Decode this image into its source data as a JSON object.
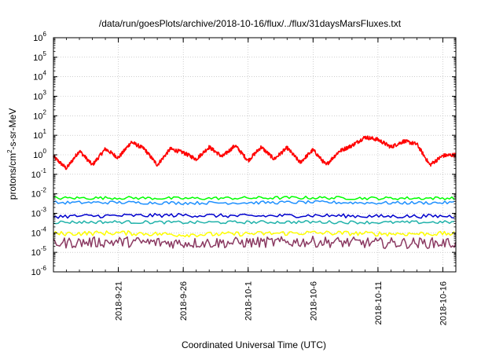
{
  "chart_data": {
    "type": "line",
    "title": "/data/run/goesPlots/archive/2018-10-16/flux/../flux/31daysMarsFluxes.txt",
    "xlabel": "Coordinated Universal Time (UTC)",
    "ylabel": "protons/cm²-s-sr-MeV",
    "ylabel_parts": {
      "pre": "protons/cm",
      "sup": "2",
      "post": "-s-sr-MeV"
    },
    "y_scale": "log",
    "ylim": [
      1e-06,
      1000000.0
    ],
    "xlim": [
      "2018-09-16",
      "2018-10-17"
    ],
    "y_ticks": [
      {
        "value": 1e-06,
        "base": "10",
        "exp": "-6"
      },
      {
        "value": 1e-05,
        "base": "10",
        "exp": "-5"
      },
      {
        "value": 0.0001,
        "base": "10",
        "exp": "-4"
      },
      {
        "value": 0.001,
        "base": "10",
        "exp": "-3"
      },
      {
        "value": 0.01,
        "base": "10",
        "exp": "-2"
      },
      {
        "value": 0.1,
        "base": "10",
        "exp": "-1"
      },
      {
        "value": 1,
        "base": "10",
        "exp": "0"
      },
      {
        "value": 10,
        "base": "10",
        "exp": "1"
      },
      {
        "value": 100,
        "base": "10",
        "exp": "2"
      },
      {
        "value": 1000.0,
        "base": "10",
        "exp": "3"
      },
      {
        "value": 10000.0,
        "base": "10",
        "exp": "4"
      },
      {
        "value": 100000.0,
        "base": "10",
        "exp": "5"
      },
      {
        "value": 1000000.0,
        "base": "10",
        "exp": "6"
      }
    ],
    "x_ticks": [
      "2018-9-21",
      "2018-9-26",
      "2018-10-1",
      "2018-10-6",
      "2018-10-11",
      "2018-10-16"
    ],
    "x_tick_dates": [
      "2018-09-21",
      "2018-09-26",
      "2018-10-01",
      "2018-10-06",
      "2018-10-11",
      "2018-10-16"
    ],
    "grid": true,
    "legend": "none",
    "series": [
      {
        "color": "#ff0000",
        "x": [
          "2018-09-16",
          "2018-09-17",
          "2018-09-18",
          "2018-09-19",
          "2018-09-20",
          "2018-09-21",
          "2018-09-22",
          "2018-09-23",
          "2018-09-24",
          "2018-09-25",
          "2018-09-26",
          "2018-09-27",
          "2018-09-28",
          "2018-09-29",
          "2018-09-30",
          "2018-10-01",
          "2018-10-02",
          "2018-10-03",
          "2018-10-04",
          "2018-10-05",
          "2018-10-06",
          "2018-10-07",
          "2018-10-08",
          "2018-10-09",
          "2018-10-10",
          "2018-10-11",
          "2018-10-12",
          "2018-10-13",
          "2018-10-14",
          "2018-10-15",
          "2018-10-16",
          "2018-10-17"
        ],
        "y": [
          0.8,
          0.2,
          1.6,
          0.3,
          2.0,
          0.7,
          4.5,
          2.0,
          0.3,
          2.0,
          1.3,
          0.6,
          2.5,
          0.8,
          3.0,
          0.5,
          2.5,
          0.6,
          2.3,
          0.4,
          1.8,
          0.3,
          1.5,
          3.0,
          8.0,
          6.0,
          2.5,
          5.0,
          3.5,
          0.3,
          0.9,
          1.0
        ]
      },
      {
        "color": "#00ff00",
        "x": [
          "2018-09-16",
          "2018-09-21",
          "2018-09-26",
          "2018-10-01",
          "2018-10-06",
          "2018-10-11",
          "2018-10-16",
          "2018-10-17"
        ],
        "y": [
          0.006,
          0.0062,
          0.0058,
          0.0061,
          0.0063,
          0.0059,
          0.006,
          0.006
        ]
      },
      {
        "color": "#1e90ff",
        "x": [
          "2018-09-16",
          "2018-09-21",
          "2018-09-26",
          "2018-10-01",
          "2018-10-06",
          "2018-10-11",
          "2018-10-16",
          "2018-10-17"
        ],
        "y": [
          0.0035,
          0.0036,
          0.0034,
          0.0035,
          0.0037,
          0.0034,
          0.0035,
          0.0035
        ]
      },
      {
        "color": "#0000cd",
        "x": [
          "2018-09-16",
          "2018-09-21",
          "2018-09-26",
          "2018-10-01",
          "2018-10-06",
          "2018-10-11",
          "2018-10-16",
          "2018-10-17"
        ],
        "y": [
          0.0007,
          0.00075,
          0.0008,
          0.00072,
          0.00078,
          0.0007,
          0.00072,
          0.0007
        ]
      },
      {
        "color": "#20b2aa",
        "x": [
          "2018-09-16",
          "2018-09-21",
          "2018-09-26",
          "2018-10-01",
          "2018-10-06",
          "2018-10-11",
          "2018-10-16",
          "2018-10-17"
        ],
        "y": [
          0.00035,
          0.00036,
          0.00034,
          0.00035,
          0.00036,
          0.00034,
          0.00035,
          0.00035
        ]
      },
      {
        "color": "#ffff00",
        "x": [
          "2018-09-16",
          "2018-09-21",
          "2018-09-26",
          "2018-10-01",
          "2018-10-06",
          "2018-10-11",
          "2018-10-16",
          "2018-10-17"
        ],
        "y": [
          9e-05,
          0.0001,
          8e-05,
          9e-05,
          0.0001,
          9e-05,
          9e-05,
          9e-05
        ]
      },
      {
        "color": "#8b3a62",
        "x": [
          "2018-09-16",
          "2018-09-21",
          "2018-09-26",
          "2018-10-01",
          "2018-10-06",
          "2018-10-11",
          "2018-10-16",
          "2018-10-17"
        ],
        "y": [
          3e-05,
          3.5e-05,
          3e-05,
          3.2e-05,
          3.5e-05,
          3e-05,
          3e-05,
          3e-05
        ]
      }
    ]
  }
}
